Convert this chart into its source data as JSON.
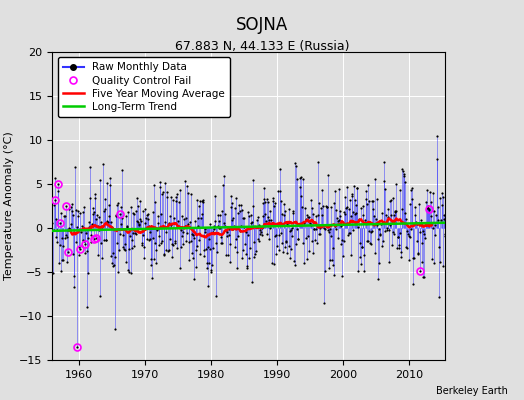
{
  "title": "SOJNA",
  "subtitle": "67.883 N, 44.133 E (Russia)",
  "ylabel": "Temperature Anomaly (°C)",
  "credit": "Berkeley Earth",
  "ylim": [
    -15,
    20
  ],
  "yticks": [
    -15,
    -10,
    -5,
    0,
    5,
    10,
    15,
    20
  ],
  "year_start": 1956,
  "xticks": [
    1960,
    1970,
    1980,
    1990,
    2000,
    2010
  ],
  "xlim": [
    1956,
    2015.5
  ],
  "raw_color": "#3333ff",
  "ma_color": "#ff0000",
  "trend_color": "#00cc00",
  "qc_color": "#ff00ff",
  "background_color": "#e0e0e0",
  "grid_color": "#ffffff",
  "seed": 17,
  "n_months": 720,
  "ma_window": 60,
  "title_fontsize": 12,
  "subtitle_fontsize": 9,
  "legend_fontsize": 7.5,
  "tick_fontsize": 8,
  "ylabel_fontsize": 8
}
